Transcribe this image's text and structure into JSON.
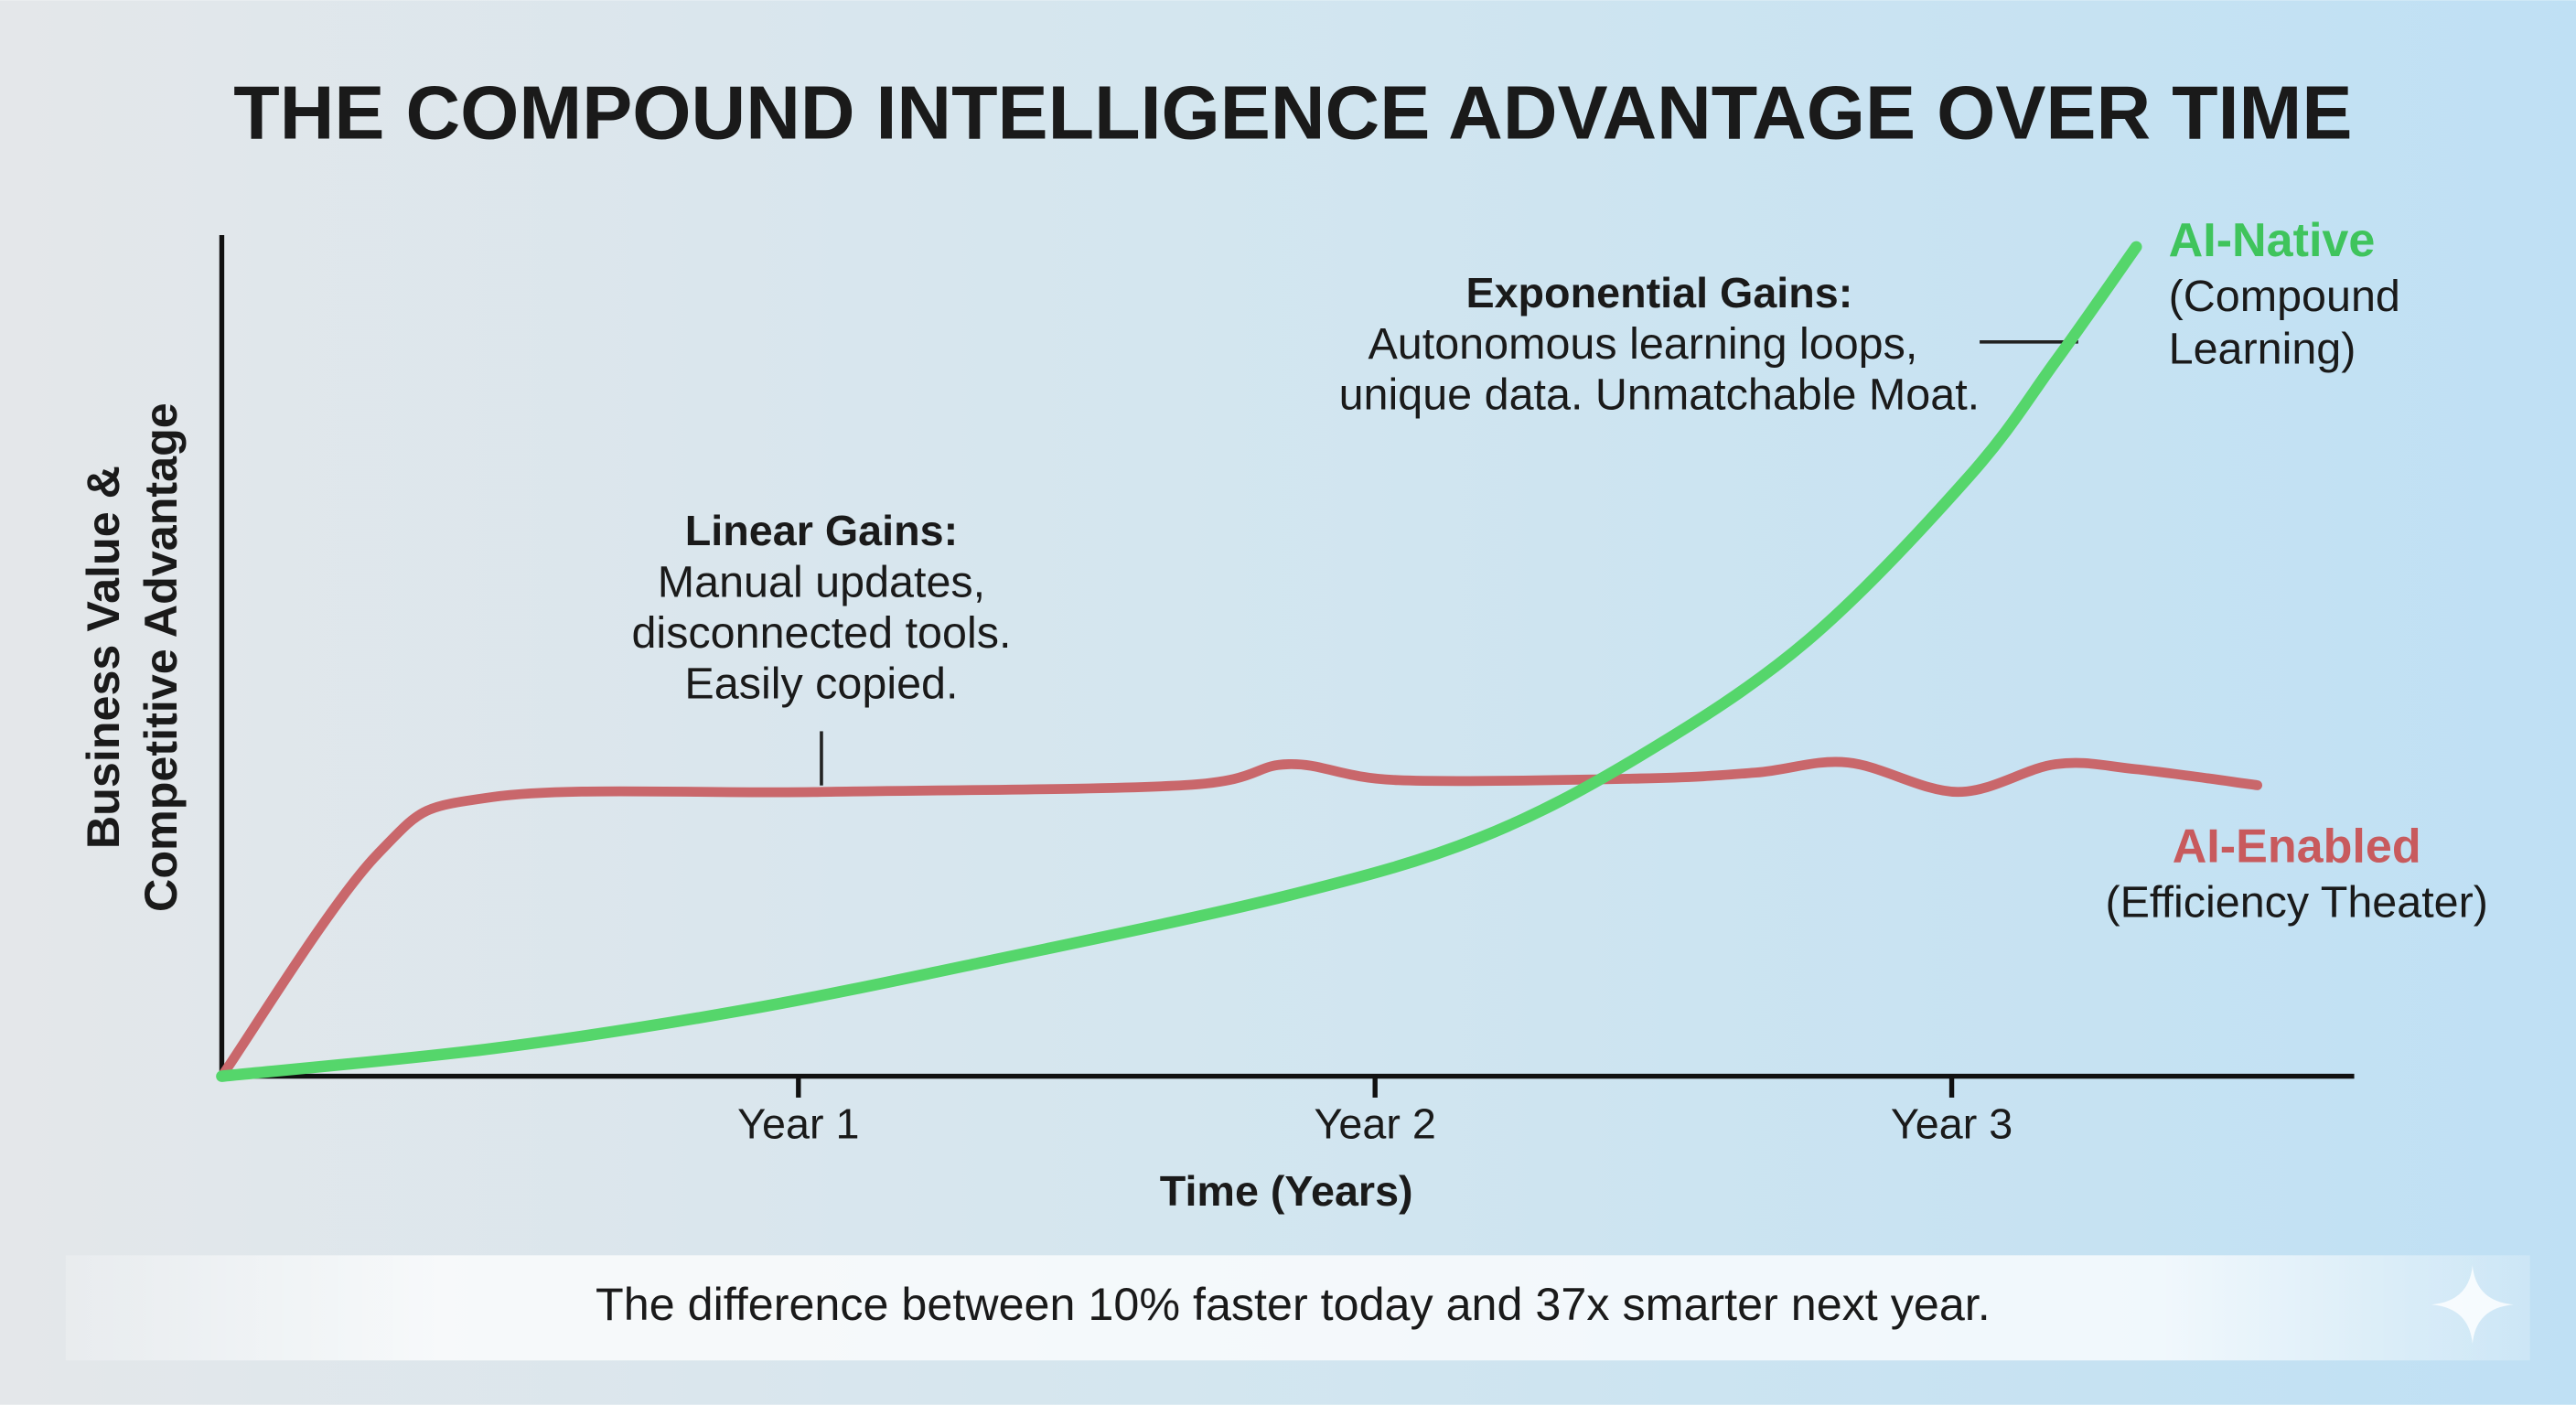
{
  "chart_data": {
    "type": "line",
    "title": "THE COMPOUND INTELLIGENCE ADVANTAGE OVER TIME",
    "ylabel": [
      "Business Value &",
      "Competitive Advantage"
    ],
    "xlabel": "Time (Years)",
    "xlim": [
      0,
      3.7
    ],
    "xticks": [
      {
        "value": 1,
        "label": "Year 1"
      },
      {
        "value": 2,
        "label": "Year 2"
      },
      {
        "value": 3,
        "label": "Year 3"
      }
    ],
    "ylim": [
      0,
      100
    ],
    "series": [
      {
        "name": "AI-Native",
        "description": [
          "(Compound",
          "Learning)"
        ],
        "color": "#55d66b",
        "x": [
          0,
          0.47,
          0.9,
          1.33,
          1.85,
          2.18,
          2.46,
          2.75,
          3.03,
          3.18,
          3.32
        ],
        "values": [
          0,
          3.3,
          7.8,
          13.7,
          21.5,
          28.3,
          38.1,
          51.8,
          71.3,
          85,
          98.6
        ]
      },
      {
        "name": "AI-Enabled",
        "description": [
          "(Efficiency Theater)"
        ],
        "color": "#c9676b",
        "x": [
          0,
          0.27,
          0.47,
          1.04,
          1.67,
          1.85,
          2.04,
          2.46,
          2.66,
          2.82,
          3.01,
          3.18,
          3.32,
          3.53
        ],
        "values": [
          0,
          26.4,
          33.2,
          33.8,
          34.6,
          37.1,
          35.2,
          35.4,
          36.1,
          37.3,
          33.8,
          37.1,
          36.5,
          34.6
        ]
      }
    ],
    "annotations": [
      {
        "title": "Linear Gains:",
        "lines": [
          "Manual updates,",
          "disconnected tools.",
          "Easily copied."
        ]
      },
      {
        "title": "Exponential Gains:",
        "lines": [
          "Autonomous learning loops,",
          "unique data. Unmatchable Moat."
        ]
      }
    ],
    "caption": "The difference between 10% faster today and 37x smarter next year."
  }
}
